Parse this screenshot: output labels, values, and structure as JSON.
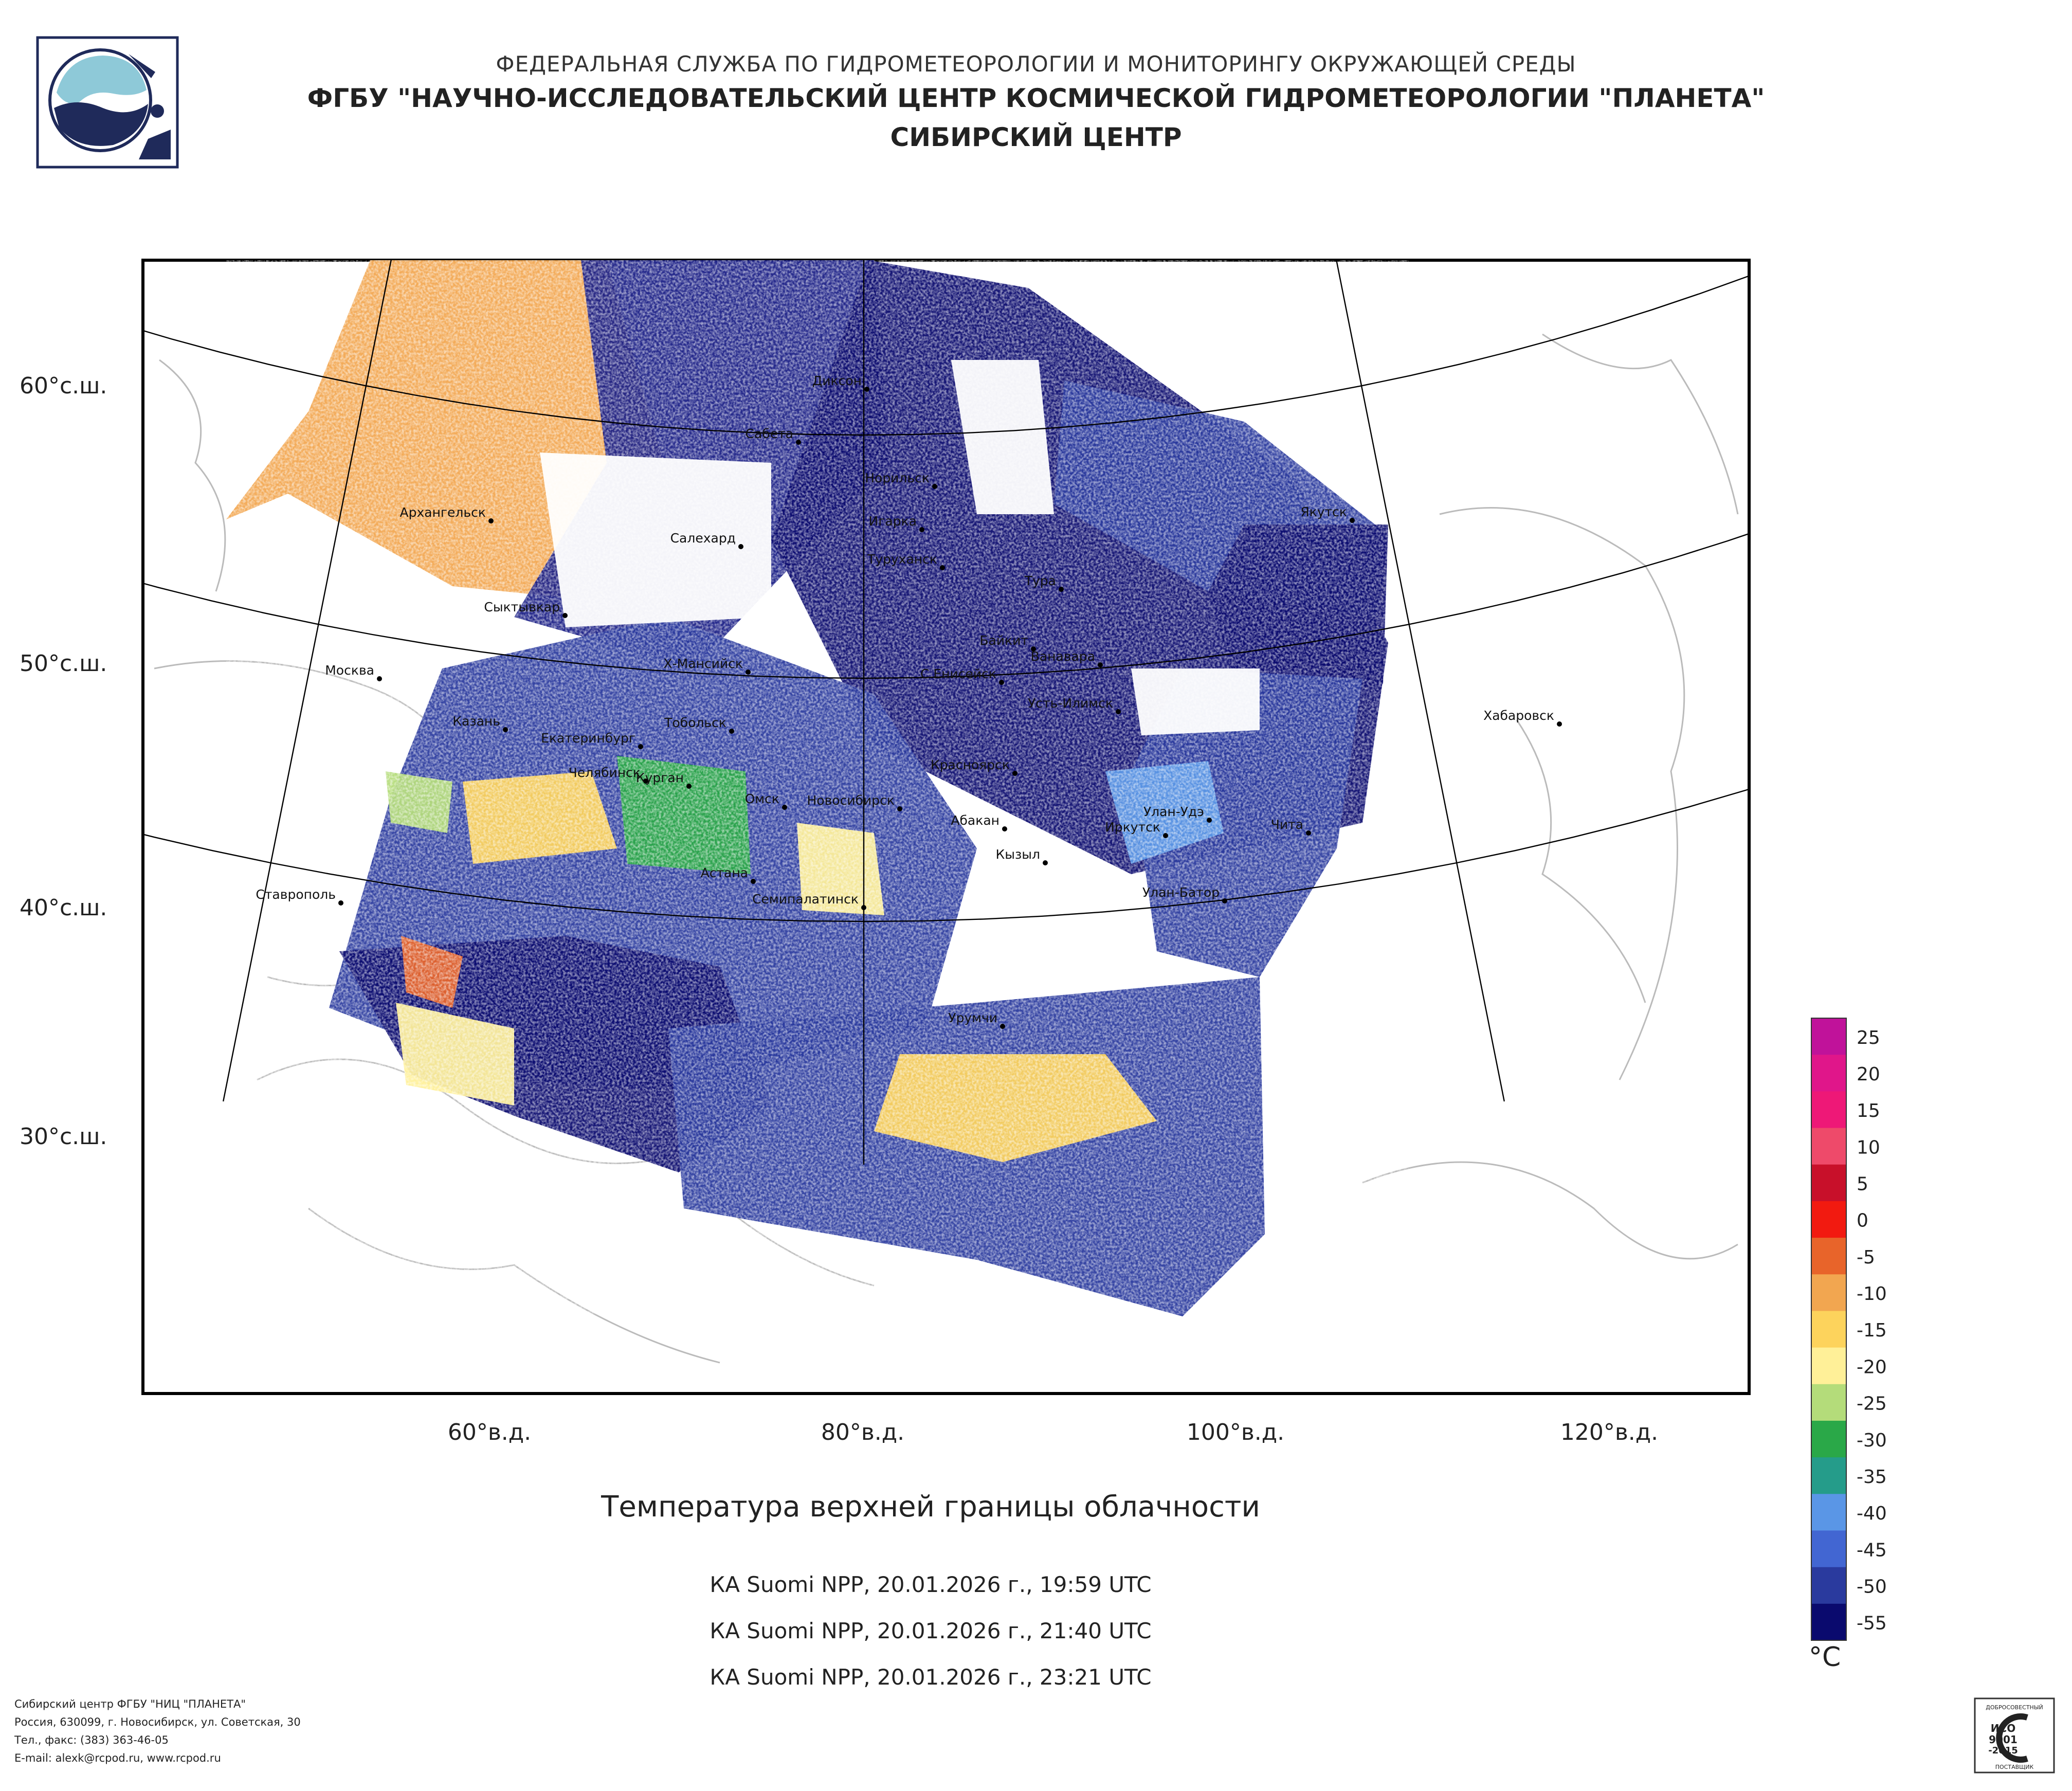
{
  "header": {
    "agency": "ФЕДЕРАЛЬНАЯ СЛУЖБА ПО ГИДРОМЕТЕОРОЛОГИИ И МОНИТОРИНГУ ОКРУЖАЮЩЕЙ СРЕДЫ",
    "center": "ФГБУ \"НАУЧНО-ИССЛЕДОВАТЕЛЬСКИЙ ЦЕНТР КОСМИЧЕСКОЙ ГИДРОМЕТЕОРОЛОГИИ \"ПЛАНЕТА\"",
    "branch": "СИБИРСКИЙ ЦЕНТР"
  },
  "map": {
    "lat_labels": [
      "60°с.ш.",
      "50°с.ш.",
      "40°с.ш.",
      "30°с.ш."
    ],
    "lon_labels": [
      "60°в.д.",
      "80°в.д.",
      "100°в.д.",
      "120°в.д."
    ],
    "cities": {
      "dikson": "Диксон",
      "sabeta": "Сабета",
      "norilsk": "Норильск",
      "igarka": "Игарка",
      "turukhansk": "Туруханск",
      "tura": "Тура",
      "yakutsk": "Якутск",
      "arkhangelsk": "Архангельск",
      "salekhard": "Салехард",
      "syktyvkar": "Сыктывкар",
      "baikit": "Байкит",
      "vanavara": "Ванавара",
      "moskva": "Москва",
      "khmansiysk": "Х-Мансийск",
      "seniseysk": "С.Енисейск",
      "ustilimsk": "Усть-Илимск",
      "khabarovsk": "Хабаровск",
      "kazan": "Казань",
      "ekaterinburg": "Екатеринбург",
      "tobolsk": "Тобольск",
      "krasnoyarsk": "Красноярск",
      "chelyabinsk": "Челябинск",
      "chita": "Чита",
      "kurgan": "Курган",
      "omsk": "Омск",
      "novosibirsk": "Новосибирск",
      "abakan": "Абакан",
      "ulanude": "Улан-Удэ",
      "irkutsk": "Иркутск",
      "kyzyl": "Кызыл",
      "astana": "Астана",
      "stavropol": "Ставрополь",
      "semipalatinsk": "Семипалатинск",
      "ulanbator": "Улан-Батор",
      "urumchi": "Урумчи"
    },
    "grid_lat_deg": [
      60,
      50,
      40,
      30,
      20
    ],
    "grid_lon_deg": [
      40,
      50,
      60,
      70,
      80,
      90,
      100,
      110,
      120,
      130
    ]
  },
  "legend": {
    "unit": "°С",
    "ticks": [
      "25",
      "20",
      "15",
      "10",
      "5",
      "0",
      "-5",
      "-10",
      "-15",
      "-20",
      "-25",
      "-30",
      "-35",
      "-40",
      "-45",
      "-50",
      "-55"
    ],
    "colors": [
      "#c0129a",
      "#e0168a",
      "#ee1877",
      "#ee4a6a",
      "#c8102a",
      "#f21a10",
      "#e8642a",
      "#f2a650",
      "#fdd35c",
      "#fff098",
      "#b4dc7a",
      "#2aa848",
      "#259c8a",
      "#5a96e6",
      "#4266d2",
      "#2a3a9e",
      "#0a0a6e"
    ]
  },
  "product": {
    "title": "Температура верхней границы облачности",
    "passes": [
      "КА Suomi NPP, 20.01.2026 г., 19:59 UTC",
      "КА Suomi NPP, 20.01.2026 г., 21:40 UTC",
      "КА Suomi NPP, 20.01.2026 г., 23:21 UTC"
    ]
  },
  "footer": {
    "line1": "Сибирский центр ФГБУ \"НИЦ \"ПЛАНЕТА\"",
    "line2": "Россия, 630099, г. Новосибирск, ул. Советская, 30",
    "line3": "Тел., факс: (383) 363-46-05",
    "line4": "E-mail: alexk@rcpod.ru, www.rcpod.ru"
  },
  "iso_badge": {
    "top": "ДОБРОСОВЕСТНЫЙ",
    "main1": "ИСО",
    "main2": "9001",
    "main3": "-2015",
    "bottom": "ПОСТАВЩИК"
  }
}
